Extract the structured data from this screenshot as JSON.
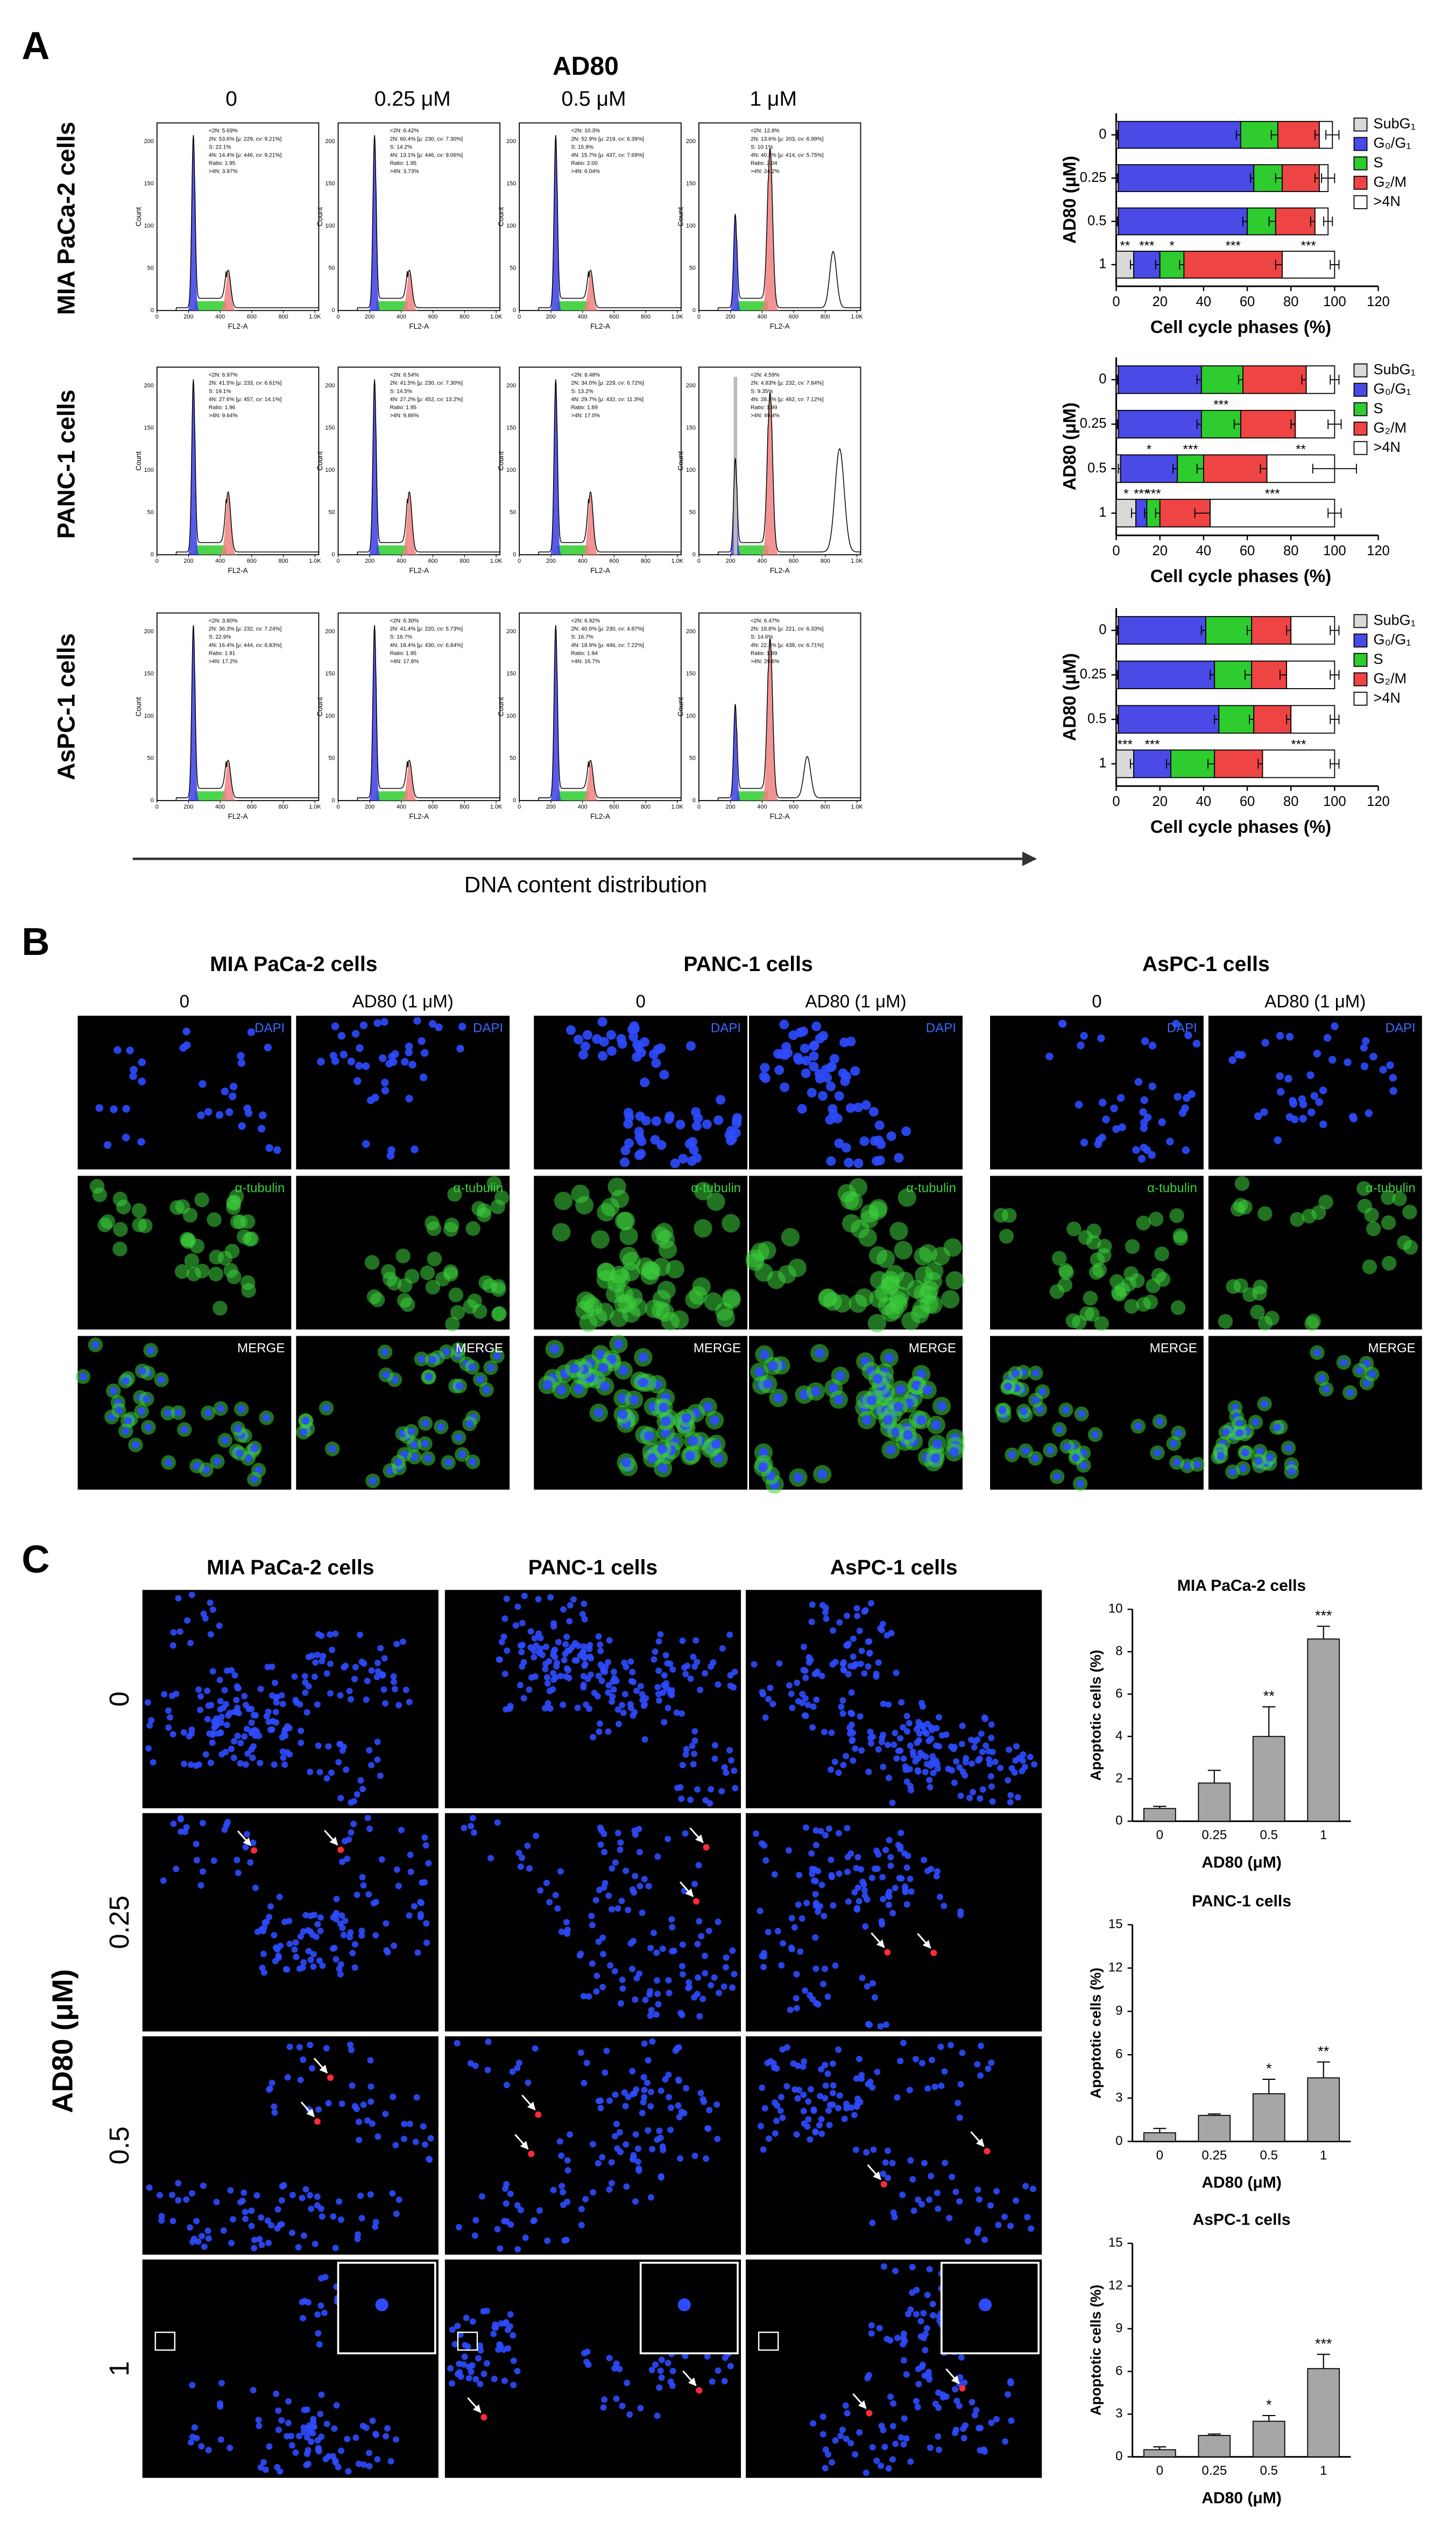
{
  "panel_a": {
    "label": "A",
    "title": "AD80",
    "doses": [
      "0",
      "0.25 μM",
      "0.5 μM",
      "1 μM"
    ],
    "cell_lines": [
      "MIA PaCa-2 cells",
      "PANC-1 cells",
      "AsPC-1 cells"
    ],
    "x_caption": "DNA content distribution",
    "histograms": {
      "x_label": "FL2-A",
      "y_label": "Count",
      "x_ticks": [
        "0",
        "200",
        "400",
        "600",
        "800",
        "1.0K"
      ],
      "y_ticks": [
        "0",
        "50",
        "100",
        "150",
        "200"
      ],
      "stats": [
        [
          [
            "<2N: 5.69%",
            "2N: 53.6% [μ: 229, cv: 9.21%]",
            "S: 22.1%",
            "4N: 14.4% [μ: 446, cv: 9.21%]",
            "Ratio: 1.95",
            ">4N: 3.97%"
          ],
          [
            "<2N: 6.42%",
            "2N: 60.4% [μ: 230, cv: 7.30%]",
            "S: 14.2%",
            "4N: 13.1% [μ: 446, cv: 9.06%]",
            "Ratio: 1.95",
            ">4N: 3.73%"
          ],
          [
            "<2N: 10.3%",
            "2N: 52.9% [μ: 219, cv: 6.39%]",
            "S: 15.9%",
            "4N: 15.7% [μ: 437, cv: 7.69%]",
            "Ratio: 2.00",
            ">4N: 6.04%"
          ],
          [
            "<2N: 12.8%",
            "2N: 13.6% [μ: 203, cv: 6.99%]",
            "S: 10.1%",
            "4N: 40.3% [μ: 414, cv: 5.75%]",
            "Ratio: 2.04",
            ">4N: 24.2%"
          ]
        ],
        [
          [
            "<2N: 6.97%",
            "2N: 41.5% [μ: 233, cv: 6.61%]",
            "S: 19.1%",
            "4N: 27.6% [μ: 457, cv: 14.1%]",
            "Ratio: 1.96",
            ">4N: 9.64%"
          ],
          [
            "<2N: 6.54%",
            "2N: 41.5% [μ: 230, cv: 7.30%]",
            "S: 14.5%",
            "4N: 27.2% [μ: 452, cv: 13.2%]",
            "Ratio: 1.95",
            ">4N: 9.86%"
          ],
          [
            "<2N: 8.48%",
            "2N: 34.0% [μ: 229, cv: 6.72%]",
            "S: 13.2%",
            "4N: 29.7% [μ: 432, cv: 11.3%]",
            "Ratio: 1.89",
            ">4N: 17.0%"
          ],
          [
            "<2N: 4.59%",
            "2N: 4.83% [μ: 232, cv: 7.84%]",
            "S: 9.35%",
            "4N: 28.2% [μ: 462, cv: 7.12%]",
            "Ratio: 1.99",
            ">4N: 49.4%"
          ]
        ],
        [
          [
            "<2N: 3.80%",
            "2N: 36.3% [μ: 232, cv: 7.24%]",
            "S: 22.9%",
            "4N: 16.4% [μ: 444, cv: 6.83%]",
            "Ratio: 1.91",
            ">4N: 17.2%"
          ],
          [
            "<2N: 6.30%",
            "2N: 41.4% [μ: 220, cv: 5.73%]",
            "S: 16.7%",
            "4N: 18.4% [μ: 430, cv: 6.84%]",
            "Ratio: 1.95",
            ">4N: 17.8%"
          ],
          [
            "<2N: 6.92%",
            "2N: 40.0% [μ: 230, cv: 4.87%]",
            "S: 16.7%",
            "4N: 18.9% [μ: 446, cv: 7.22%]",
            "Ratio: 1.94",
            ">4N: 16.7%"
          ],
          [
            "<2N: 6.47%",
            "2N: 18.8% [μ: 221, cv: 6.33%]",
            "S: 14.6%",
            "4N: 22.2% [μ: 439, cv: 6.71%]",
            "Ratio: 1.99",
            ">4N: 29.6%"
          ]
        ]
      ]
    }
  },
  "panel_b": {
    "label": "B",
    "cell_lines": [
      "MIA PaCa-2 cells",
      "PANC-1 cells",
      "AsPC-1 cells"
    ],
    "treatments": [
      "0",
      "AD80 (1 μM)"
    ],
    "channels": [
      "DAPI",
      "α-tubulin",
      "MERGE"
    ]
  },
  "panel_c": {
    "label": "C",
    "cell_lines": [
      "MIA PaCa-2 cells",
      "PANC-1 cells",
      "AsPC-1 cells"
    ],
    "doses": [
      "0",
      "0.25",
      "0.5",
      "1"
    ],
    "axis_label": "AD80 (μM)"
  },
  "chart_data": [
    {
      "type": "stacked_bar_h",
      "xlabel": "Cell cycle phases (%)",
      "ylabel": "AD80 (μM)",
      "categories": [
        "0",
        "0.25",
        "0.5",
        "1"
      ],
      "xlim": [
        0,
        120
      ],
      "xticks": [
        0,
        20,
        40,
        60,
        80,
        100,
        120
      ],
      "series": [
        {
          "name": "SubG₁",
          "color": "#d9d9d9",
          "values": [
            1,
            1,
            1,
            8
          ],
          "errors": [
            0.5,
            0.5,
            0.5,
            1.5
          ],
          "significance": [
            null,
            null,
            null,
            "**"
          ]
        },
        {
          "name": "G₀/G₁",
          "color": "#4a4ae6",
          "values": [
            56,
            62,
            59,
            12
          ],
          "errors": [
            2,
            1.5,
            2,
            2
          ],
          "significance": [
            null,
            null,
            null,
            "***"
          ]
        },
        {
          "name": "S",
          "color": "#2ecc2e",
          "values": [
            17,
            13,
            13,
            11
          ],
          "errors": [
            3,
            3,
            3,
            2
          ],
          "significance": [
            null,
            null,
            null,
            "*"
          ]
        },
        {
          "name": "G₂/M",
          "color": "#ee4444",
          "values": [
            19,
            17,
            18,
            45
          ],
          "errors": [
            2,
            2,
            2,
            3
          ],
          "significance": [
            null,
            null,
            null,
            "***"
          ]
        },
        {
          "name": ">4N",
          "color": "#ffffff",
          "values": [
            6,
            4,
            6,
            24
          ],
          "errors": [
            3,
            3,
            2,
            2
          ],
          "significance": [
            null,
            null,
            null,
            "***"
          ]
        }
      ]
    },
    {
      "type": "stacked_bar_h",
      "xlabel": "Cell cycle phases (%)",
      "ylabel": "AD80 (μM)",
      "categories": [
        "0",
        "0.25",
        "0.5",
        "1"
      ],
      "xlim": [
        0,
        120
      ],
      "xticks": [
        0,
        20,
        40,
        60,
        80,
        100,
        120
      ],
      "series": [
        {
          "name": "SubG₁",
          "color": "#d9d9d9",
          "values": [
            1,
            1,
            2,
            9
          ],
          "errors": [
            0.5,
            0.5,
            1,
            2
          ],
          "significance": [
            null,
            null,
            null,
            "*"
          ]
        },
        {
          "name": "G₀/G₁",
          "color": "#4a4ae6",
          "values": [
            38,
            38,
            26,
            5
          ],
          "errors": [
            2,
            2,
            2,
            1
          ],
          "significance": [
            null,
            null,
            "*",
            "***"
          ]
        },
        {
          "name": "S",
          "color": "#2ecc2e",
          "values": [
            19,
            18,
            12,
            6
          ],
          "errors": [
            2,
            3,
            3,
            2
          ],
          "significance": [
            null,
            "***",
            "***",
            "***"
          ]
        },
        {
          "name": "G₂/M",
          "color": "#ee4444",
          "values": [
            29,
            25,
            29,
            23
          ],
          "errors": [
            2,
            2,
            3,
            7
          ]
        },
        {
          "name": ">4N",
          "color": "#ffffff",
          "values": [
            13,
            18,
            31,
            57
          ],
          "errors": [
            2,
            3,
            10,
            3
          ],
          "significance": [
            null,
            null,
            "**",
            "***"
          ]
        }
      ]
    },
    {
      "type": "stacked_bar_h",
      "xlabel": "Cell cycle phases (%)",
      "ylabel": "AD80 (μM)",
      "categories": [
        "0",
        "0.25",
        "0.5",
        "1"
      ],
      "xlim": [
        0,
        120
      ],
      "xticks": [
        0,
        20,
        40,
        60,
        80,
        100,
        120
      ],
      "series": [
        {
          "name": "SubG₁",
          "color": "#d9d9d9",
          "values": [
            1,
            1,
            1,
            8
          ],
          "errors": [
            0.5,
            0.5,
            0.5,
            1.5
          ],
          "significance": [
            null,
            null,
            null,
            "***"
          ]
        },
        {
          "name": "G₀/G₁",
          "color": "#4a4ae6",
          "values": [
            40,
            44,
            46,
            17
          ],
          "errors": [
            2,
            2,
            2,
            2
          ],
          "significance": [
            null,
            null,
            null,
            "***"
          ]
        },
        {
          "name": "S",
          "color": "#2ecc2e",
          "values": [
            21,
            17,
            16,
            20
          ],
          "errors": [
            2,
            3,
            2,
            3
          ]
        },
        {
          "name": "G₂/M",
          "color": "#ee4444",
          "values": [
            18,
            16,
            17,
            22
          ],
          "errors": [
            2,
            3,
            2,
            2
          ]
        },
        {
          "name": ">4N",
          "color": "#ffffff",
          "values": [
            20,
            22,
            20,
            33
          ],
          "errors": [
            2,
            2,
            2,
            2
          ],
          "significance": [
            null,
            null,
            null,
            "***"
          ]
        }
      ]
    },
    {
      "type": "bar",
      "title": "MIA PaCa-2 cells",
      "xlabel": "AD80 (μM)",
      "ylabel": "Apoptotic cells (%)",
      "categories": [
        "0",
        "0.25",
        "0.5",
        "1"
      ],
      "values": [
        0.6,
        1.8,
        4.0,
        8.6
      ],
      "errors": [
        0.1,
        0.6,
        1.4,
        0.6
      ],
      "significance": [
        null,
        null,
        "**",
        "***"
      ],
      "color": "#a6a6a6",
      "ylim": [
        0,
        10
      ],
      "yticks": [
        0,
        2,
        4,
        6,
        8,
        10
      ]
    },
    {
      "type": "bar",
      "title": "PANC-1 cells",
      "xlabel": "AD80 (μM)",
      "ylabel": "Apoptotic cells (%)",
      "categories": [
        "0",
        "0.25",
        "0.5",
        "1"
      ],
      "values": [
        0.6,
        1.8,
        3.3,
        4.4
      ],
      "errors": [
        0.3,
        0.1,
        1.0,
        1.1
      ],
      "significance": [
        null,
        null,
        "*",
        "**"
      ],
      "color": "#a6a6a6",
      "ylim": [
        0,
        15
      ],
      "yticks": [
        0,
        3,
        6,
        9,
        12,
        15
      ]
    },
    {
      "type": "bar",
      "title": "AsPC-1 cells",
      "xlabel": "AD80 (μM)",
      "ylabel": "Apoptotic cells (%)",
      "categories": [
        "0",
        "0.25",
        "0.5",
        "1"
      ],
      "values": [
        0.5,
        1.5,
        2.5,
        6.2
      ],
      "errors": [
        0.2,
        0.1,
        0.4,
        1.0
      ],
      "significance": [
        null,
        null,
        "*",
        "***"
      ],
      "color": "#a6a6a6",
      "ylim": [
        0,
        15
      ],
      "yticks": [
        0,
        3,
        6,
        9,
        12,
        15
      ]
    }
  ]
}
